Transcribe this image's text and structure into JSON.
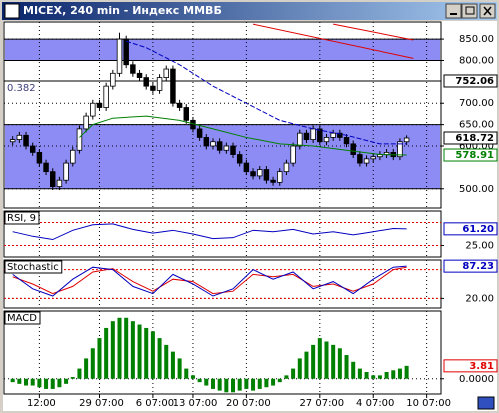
{
  "chart_data": [
    {
      "type": "candlestick",
      "title": "MICEX, 240 min - Индекс ММВБ",
      "open": [
        610,
        615,
        625,
        600,
        585,
        560,
        540,
        505,
        520,
        560,
        590,
        640,
        670,
        700,
        690,
        740,
        770,
        850,
        790,
        770,
        760,
        740,
        730,
        760,
        780,
        700,
        690,
        660,
        640,
        620,
        600,
        610,
        590,
        600,
        580,
        560,
        540,
        530,
        545,
        520,
        515,
        540,
        560,
        600,
        630,
        615,
        640,
        610,
        620,
        630,
        620,
        605,
        580,
        560,
        570,
        575,
        580,
        585,
        575,
        610
      ],
      "high": [
        623,
        633,
        633,
        608,
        593,
        568,
        548,
        528,
        568,
        598,
        648,
        678,
        708,
        708,
        748,
        778,
        865,
        858,
        798,
        778,
        768,
        748,
        768,
        788,
        788,
        708,
        698,
        668,
        648,
        628,
        618,
        618,
        608,
        608,
        588,
        568,
        548,
        553,
        553,
        528,
        548,
        568,
        608,
        638,
        638,
        648,
        648,
        628,
        638,
        638,
        628,
        613,
        588,
        578,
        583,
        588,
        593,
        593,
        618,
        625
      ],
      "low": [
        602,
        607,
        592,
        577,
        552,
        532,
        497,
        497,
        512,
        552,
        582,
        632,
        662,
        682,
        682,
        732,
        762,
        782,
        762,
        752,
        732,
        722,
        722,
        752,
        692,
        682,
        652,
        632,
        612,
        592,
        592,
        582,
        582,
        572,
        552,
        532,
        522,
        522,
        512,
        507,
        507,
        532,
        552,
        592,
        607,
        607,
        602,
        602,
        612,
        612,
        597,
        572,
        552,
        552,
        562,
        567,
        572,
        567,
        567,
        602
      ],
      "close": [
        615,
        625,
        600,
        585,
        560,
        540,
        505,
        520,
        560,
        590,
        640,
        670,
        700,
        690,
        740,
        770,
        850,
        790,
        770,
        760,
        740,
        730,
        760,
        780,
        700,
        690,
        660,
        640,
        620,
        600,
        610,
        590,
        600,
        580,
        560,
        540,
        530,
        545,
        520,
        515,
        540,
        560,
        600,
        630,
        615,
        640,
        610,
        620,
        630,
        620,
        605,
        580,
        560,
        570,
        575,
        580,
        585,
        575,
        610,
        618.72
      ],
      "up_color": "#ffffff",
      "down_color": "#000000",
      "series": [
        {
          "color": "#0000c0",
          "x": [
            17,
            20,
            25,
            30,
            35,
            40,
            45,
            50,
            55,
            59
          ],
          "values": [
            845,
            830,
            790,
            740,
            700,
            660,
            640,
            625,
            605,
            605
          ]
        },
        {
          "color": "#008000",
          "x": [
            10,
            12,
            15,
            20,
            25,
            30,
            35,
            40,
            45,
            50,
            55,
            59
          ],
          "values": [
            620,
            650,
            665,
            670,
            660,
            640,
            620,
            605,
            600,
            590,
            580,
            578.91
          ]
        },
        {
          "color": "#e00000",
          "x": [
            36,
            60
          ],
          "values": [
            885,
            805
          ]
        },
        {
          "color": "#e00000",
          "x": [
            48,
            60
          ],
          "values": [
            885,
            848
          ]
        }
      ],
      "bands": [
        [
          800,
          850
        ],
        [
          500,
          650
        ]
      ],
      "band_color": "#8c8cf4",
      "levels": [
        850,
        800,
        752.06,
        650,
        500
      ],
      "annotation": "0.382",
      "xlim": [
        -1,
        64
      ],
      "ylim": [
        455,
        890
      ],
      "xticks": [
        {
          "value": 4,
          "label": "12:00"
        },
        {
          "value": 13,
          "label": "29 07:00"
        },
        {
          "value": 21,
          "label": "6 07:00"
        },
        {
          "value": 27,
          "label": "13 07:00"
        },
        {
          "value": 35,
          "label": "20 07:00"
        },
        {
          "value": 46,
          "label": "27 07:00"
        },
        {
          "value": 54,
          "label": "4 07:00"
        },
        {
          "value": 62,
          "label": "10 07:00"
        }
      ],
      "yticks": [
        {
          "value": 850,
          "label": "850.00"
        },
        {
          "value": 800,
          "label": "800.00"
        },
        {
          "value": 700,
          "label": "700.00"
        },
        {
          "value": 650,
          "label": "650.00"
        },
        {
          "value": 600,
          "label": "600.00"
        },
        {
          "value": 500,
          "label": "500.00"
        }
      ],
      "markers": [
        {
          "value": 752.06,
          "label": "752.06",
          "color": "#000000"
        },
        {
          "value": 618.72,
          "label": "618.72",
          "color": "#000000"
        },
        {
          "value": 578.91,
          "label": "578.91",
          "color": "#008000"
        }
      ],
      "grid": true
    },
    {
      "type": "line",
      "name": "RSI, 9",
      "xlim": [
        -1,
        64
      ],
      "ylim": [
        0,
        100
      ],
      "series": [
        {
          "color": "#0000c0",
          "x": [
            0,
            3,
            6,
            9,
            12,
            15,
            18,
            21,
            24,
            27,
            30,
            33,
            36,
            39,
            42,
            45,
            48,
            51,
            54,
            57,
            59
          ],
          "values": [
            55,
            45,
            38,
            58,
            70,
            72,
            60,
            52,
            58,
            50,
            40,
            42,
            58,
            55,
            60,
            50,
            55,
            48,
            55,
            62,
            61.2
          ]
        }
      ],
      "levels": [
        25,
        75
      ],
      "yticks": [
        {
          "value": 25,
          "label": "25.00"
        }
      ],
      "markers": [
        {
          "value": 61.2,
          "label": "61.20",
          "color": "#0000c0"
        }
      ],
      "grid": true
    },
    {
      "type": "line",
      "name": "Stochastic",
      "xlim": [
        -1,
        64
      ],
      "ylim": [
        0,
        100
      ],
      "series": [
        {
          "color": "#e00000",
          "x": [
            0,
            3,
            6,
            9,
            12,
            15,
            18,
            21,
            24,
            27,
            30,
            33,
            36,
            39,
            42,
            45,
            48,
            51,
            54,
            57,
            59
          ],
          "values": [
            65,
            50,
            30,
            45,
            75,
            82,
            55,
            35,
            60,
            55,
            30,
            35,
            70,
            65,
            70,
            45,
            50,
            35,
            50,
            80,
            85
          ]
        },
        {
          "color": "#0000c0",
          "x": [
            0,
            3,
            6,
            9,
            12,
            15,
            18,
            21,
            24,
            27,
            30,
            33,
            36,
            39,
            42,
            45,
            48,
            51,
            54,
            57,
            59
          ],
          "values": [
            70,
            40,
            25,
            60,
            85,
            80,
            45,
            30,
            70,
            50,
            25,
            40,
            80,
            60,
            75,
            40,
            55,
            30,
            60,
            85,
            87.23
          ]
        }
      ],
      "levels": [
        20,
        80
      ],
      "yticks": [
        {
          "value": 20,
          "label": "20.00"
        }
      ],
      "markers": [
        {
          "value": 87.23,
          "label": "87.23",
          "color": "#0000c0"
        }
      ],
      "grid": true
    },
    {
      "type": "bar",
      "name": "MACD",
      "xlim": [
        -1,
        64
      ],
      "ylim": [
        -4.5,
        20
      ],
      "color": "#008000",
      "values": [
        -1,
        -1.5,
        -2,
        -2,
        -2.5,
        -3,
        -3,
        -2.5,
        -1.5,
        0.5,
        3,
        6,
        9,
        12,
        15,
        17,
        18,
        18,
        17,
        16,
        15,
        14,
        12,
        10,
        8,
        6,
        3,
        1,
        -1,
        -2,
        -3,
        -3.5,
        -4,
        -4,
        -3.5,
        -3,
        -3.5,
        -3,
        -2.5,
        -2,
        -1,
        1,
        3,
        6,
        8,
        10,
        12,
        11,
        10,
        9,
        7,
        5,
        3,
        2,
        1,
        1,
        2,
        2.5,
        3,
        3.81
      ],
      "levels": [],
      "yticks": [
        {
          "value": 0,
          "label": "0.0000"
        }
      ],
      "markers": [
        {
          "value": 3.81,
          "label": "3.81",
          "color": "#e00000"
        }
      ],
      "grid": true
    }
  ]
}
